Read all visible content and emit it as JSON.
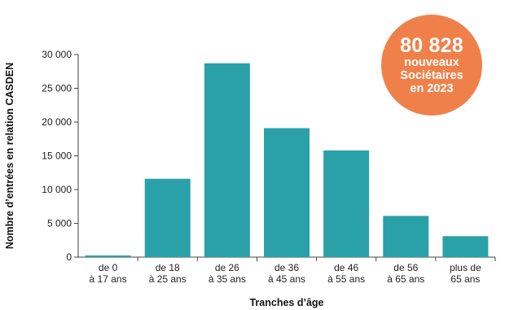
{
  "colors": {
    "bar": "#2aa1a9",
    "badge": "#f0804a",
    "axis": "#444444",
    "grid": "#c8c8c8"
  },
  "badge": {
    "number": "80 828",
    "line1": "nouveaux",
    "line2": "Sociétaires",
    "line3": "en 2023"
  },
  "chart_data": {
    "type": "bar",
    "xlabel": "Tranches d’âge",
    "ylabel": "Nombre d’entrées en relation CASDEN",
    "ylim": [
      0,
      30000
    ],
    "yticks": [
      {
        "value": 0,
        "label": "0"
      },
      {
        "value": 5000,
        "label": "5 000"
      },
      {
        "value": 10000,
        "label": "10 000"
      },
      {
        "value": 15000,
        "label": "15 000"
      },
      {
        "value": 20000,
        "label": "20 000"
      },
      {
        "value": 25000,
        "label": "25 000"
      },
      {
        "value": 30000,
        "label": "30 000"
      }
    ],
    "grid": false,
    "categories": [
      [
        "de 0",
        "à 17 ans"
      ],
      [
        "de 18",
        "à 25 ans"
      ],
      [
        "de 26",
        "à 35 ans"
      ],
      [
        "de 36",
        "à 45 ans"
      ],
      [
        "de 46",
        "à 55 ans"
      ],
      [
        "de 56",
        "à 65 ans"
      ],
      [
        "plus de",
        "65 ans"
      ]
    ],
    "values": [
      250,
      11600,
      28700,
      19100,
      15800,
      6100,
      3100
    ]
  }
}
